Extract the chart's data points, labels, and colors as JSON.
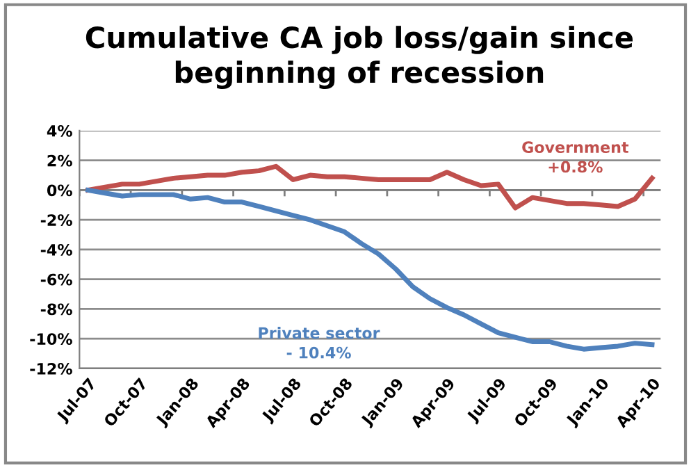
{
  "chart_data": {
    "type": "line",
    "title": "Cumulative CA job loss/gain since beginning of recession",
    "categories": [
      "Jul-07",
      null,
      null,
      "Oct-07",
      null,
      null,
      "Jan-08",
      null,
      null,
      "Apr-08",
      null,
      null,
      "Jul-08",
      null,
      null,
      "Oct-08",
      null,
      null,
      "Jan-09",
      null,
      null,
      "Apr-09",
      null,
      null,
      "Jul-09",
      null,
      null,
      "Oct-09",
      null,
      null,
      "Jan-10",
      null,
      null,
      "Apr-10"
    ],
    "series": [
      {
        "name": "Government",
        "color": "#c0504d",
        "values": [
          0,
          0.2,
          0.4,
          0.4,
          0.6,
          0.8,
          0.9,
          1.0,
          1.0,
          1.2,
          1.3,
          1.6,
          0.7,
          1.0,
          0.9,
          0.9,
          0.8,
          0.7,
          0.7,
          0.7,
          0.7,
          1.2,
          0.7,
          0.3,
          0.4,
          -1.2,
          -0.5,
          -0.7,
          -0.9,
          -0.9,
          -1.0,
          -1.1,
          -0.6,
          0.8
        ]
      },
      {
        "name": "Private sector",
        "color": "#4f81bd",
        "values": [
          0,
          -0.2,
          -0.4,
          -0.3,
          -0.3,
          -0.3,
          -0.6,
          -0.5,
          -0.8,
          -0.8,
          -1.1,
          -1.4,
          -1.7,
          -2.0,
          -2.4,
          -2.8,
          -3.6,
          -4.3,
          -5.3,
          -6.5,
          -7.3,
          -7.9,
          -8.4,
          -9.0,
          -9.6,
          -9.9,
          -10.2,
          -10.2,
          -10.5,
          -10.7,
          -10.6,
          -10.5,
          -10.3,
          -10.4
        ]
      }
    ],
    "annotations": [
      "+0.8%",
      "- 10.4%"
    ],
    "ylim": [
      -12,
      4
    ],
    "yticks": [
      {
        "value": -12,
        "label": "-12%"
      },
      {
        "value": -10,
        "label": "-10%"
      },
      {
        "value": -8,
        "label": "-8%"
      },
      {
        "value": -6,
        "label": "-6%"
      },
      {
        "value": -4,
        "label": "-4%"
      },
      {
        "value": -2,
        "label": "-2%"
      },
      {
        "value": 0,
        "label": "0%"
      },
      {
        "value": 2,
        "label": "2%"
      },
      {
        "value": 4,
        "label": "4%"
      }
    ],
    "grid": "y",
    "legend": false,
    "marker": "none",
    "line_style": "solid"
  }
}
